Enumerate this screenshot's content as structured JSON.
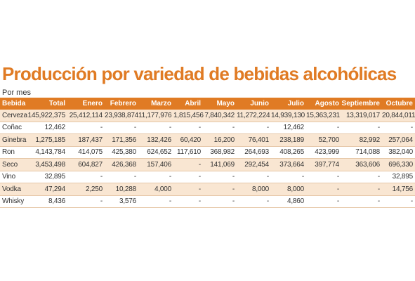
{
  "title": "Producción por variedad de bebidas alcohólicas",
  "subtitle": "Por mes",
  "columns": [
    "Bebida",
    "Total",
    "Enero",
    "Febrero",
    "Marzo",
    "Abril",
    "Mayo",
    "Junio",
    "Julio",
    "Agosto",
    "Septiembre",
    "Octubre"
  ],
  "rows": [
    [
      "Cerveza",
      "145,922,375",
      "25,412,114",
      "23,938,874",
      "11,177,976",
      "1,815,456",
      "7,840,342",
      "11,272,224",
      "14,939,130",
      "15,363,231",
      "13,319,017",
      "20,844,011"
    ],
    [
      "Coñac",
      "12,462",
      "-",
      "-",
      "-",
      "-",
      "-",
      "-",
      "12,462",
      "-",
      "-",
      "-"
    ],
    [
      "Ginebra",
      "1,275,185",
      "187,437",
      "171,356",
      "132,426",
      "60,420",
      "16,200",
      "76,401",
      "238,189",
      "52,700",
      "82,992",
      "257,064"
    ],
    [
      "Ron",
      "4,143,784",
      "414,075",
      "425,380",
      "624,652",
      "117,610",
      "368,982",
      "264,693",
      "408,265",
      "423,999",
      "714,088",
      "382,040"
    ],
    [
      "Seco",
      "3,453,498",
      "604,827",
      "426,368",
      "157,406",
      "-",
      "141,069",
      "292,454",
      "373,664",
      "397,774",
      "363,606",
      "696,330"
    ],
    [
      "Vino",
      "32,895",
      "-",
      "-",
      "-",
      "-",
      "-",
      "-",
      "-",
      "-",
      "-",
      "32,895"
    ],
    [
      "Vodka",
      "47,294",
      "2,250",
      "10,288",
      "4,000",
      "-",
      "-",
      "8,000",
      "8,000",
      "-",
      "-",
      "14,756"
    ],
    [
      "Whisky",
      "8,436",
      "-",
      "3,576",
      "-",
      "-",
      "-",
      "-",
      "4,860",
      "-",
      "-",
      "-"
    ]
  ],
  "colors": {
    "accent": "#e07b24",
    "row_tint": "#f9e6d2",
    "row_plain": "#ffffff"
  }
}
